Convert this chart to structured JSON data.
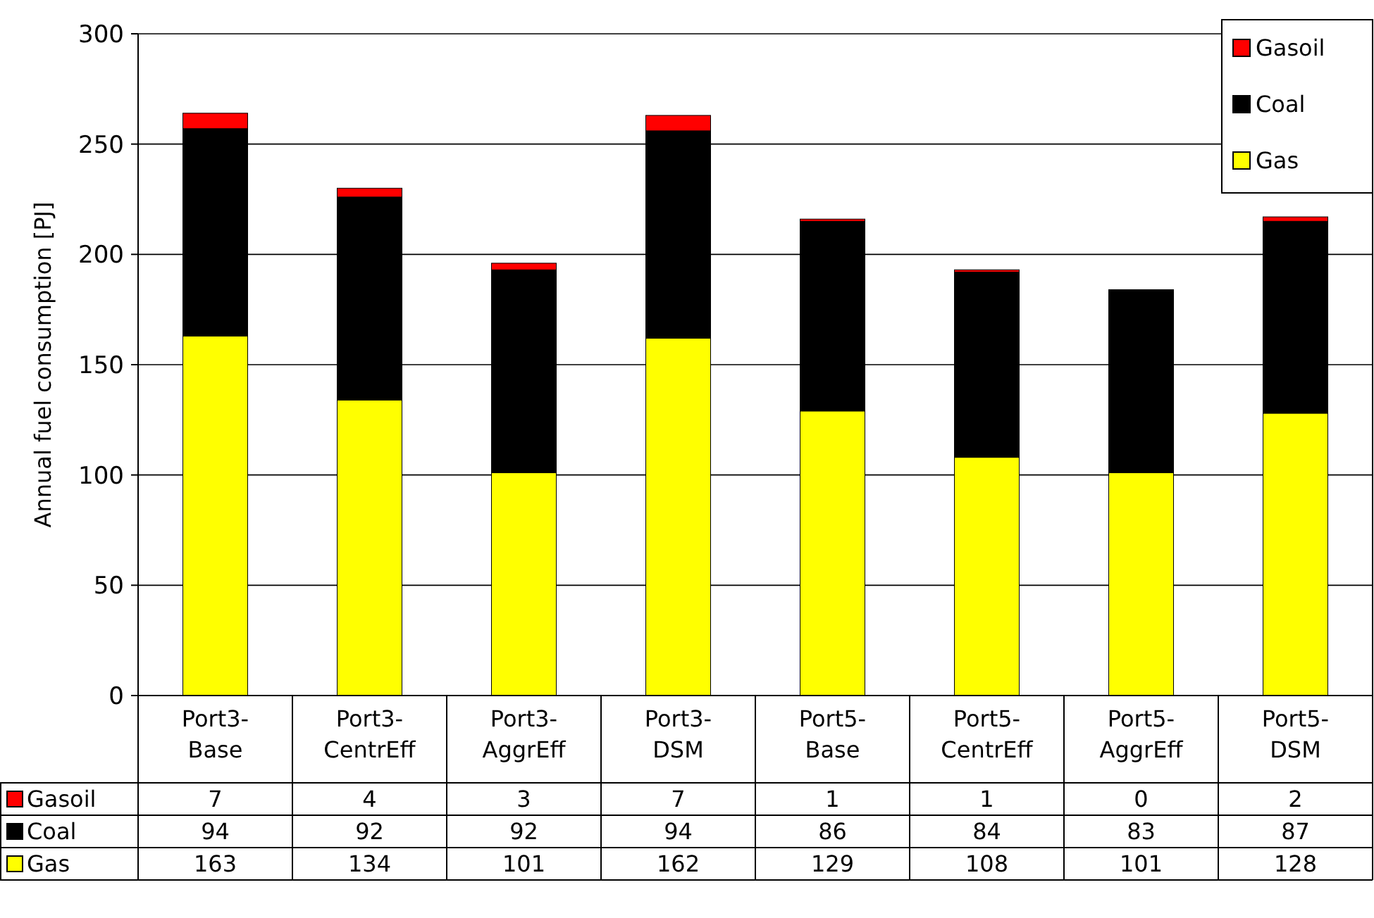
{
  "chart_data": {
    "type": "bar",
    "stacked": true,
    "ylabel": "Annual fuel consumption [PJ]",
    "categories": [
      "Port3-Base",
      "Port3-CentrEff",
      "Port3-AggrEff",
      "Port3-DSM",
      "Port5-Base",
      "Port5-CentrEff",
      "Port5-AggrEff",
      "Port5-DSM"
    ],
    "series": [
      {
        "name": "Gas",
        "color": "#ffff00",
        "values": [
          163,
          134,
          101,
          162,
          129,
          108,
          101,
          128
        ]
      },
      {
        "name": "Coal",
        "color": "#000000",
        "values": [
          94,
          92,
          92,
          94,
          86,
          84,
          83,
          87
        ]
      },
      {
        "name": "Gasoil",
        "color": "#ff0000",
        "values": [
          7,
          4,
          3,
          7,
          1,
          1,
          0,
          2
        ]
      }
    ],
    "ylim": [
      0,
      300
    ],
    "yticks": [
      0,
      50,
      100,
      150,
      200,
      250,
      300
    ],
    "grid": "y",
    "legend": "top right",
    "data_labels": true
  }
}
